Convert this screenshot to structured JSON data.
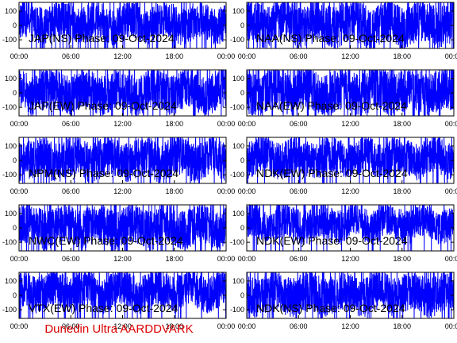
{
  "chart_data": {
    "type": "line",
    "footer": "Dunedin Ultra AARDDVARK",
    "ylim": [
      -160,
      160
    ],
    "yticks": [
      100,
      0,
      -100
    ],
    "x_ticks": [
      "00:00",
      "06:00",
      "12:00",
      "18:00",
      "00:00"
    ],
    "series_color": "#0000ff",
    "panels": [
      {
        "label": "JAP(NS) Phase: 09-Oct-2024",
        "amp": 130,
        "mean": 20
      },
      {
        "label": "NAA(NS) Phase: 09-Oct-2024",
        "amp": 150,
        "mean": 10
      },
      {
        "label": "JAP(EW) Phase: 09-Oct-2024",
        "amp": 140,
        "mean": 10
      },
      {
        "label": "NAA(EW) Phase: 09-Oct-2024",
        "amp": 150,
        "mean": 10
      },
      {
        "label": "NPM(NS) Phase: 09-Oct-2024",
        "amp": 140,
        "mean": 10
      },
      {
        "label": "NDK(EW) Phase: 09-Oct-2024",
        "amp": 130,
        "mean": 20
      },
      {
        "label": "NWC(EW) Phase: 09-Oct-2024",
        "amp": 140,
        "mean": 10
      },
      {
        "label": "NDK(EW) Phase: 09-Oct-2024",
        "amp": 120,
        "mean": 30
      },
      {
        "label": "VTX(EW) Phase: 09-Oct-2024",
        "amp": 130,
        "mean": 30
      },
      {
        "label": "NDK(NS) Phase: 09-Oct-2024",
        "amp": 140,
        "mean": 10
      }
    ]
  }
}
